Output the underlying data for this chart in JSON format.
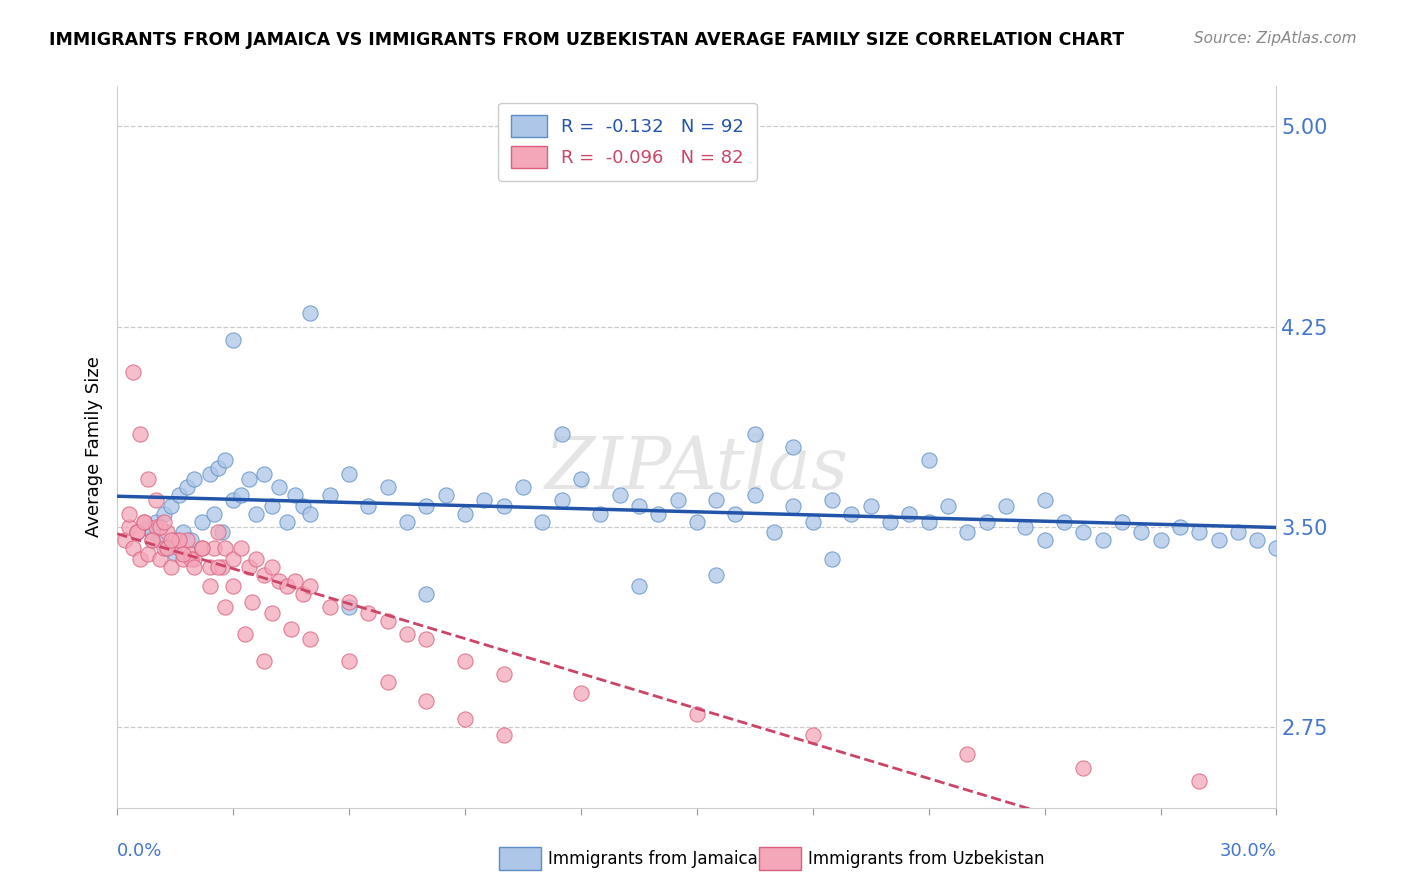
{
  "title": "IMMIGRANTS FROM JAMAICA VS IMMIGRANTS FROM UZBEKISTAN AVERAGE FAMILY SIZE CORRELATION CHART",
  "source": "Source: ZipAtlas.com",
  "ylabel": "Average Family Size",
  "xmin": 0.0,
  "xmax": 0.3,
  "ymin": 2.45,
  "ymax": 5.15,
  "yticks": [
    2.75,
    3.5,
    4.25,
    5.0
  ],
  "jamaica_R": -0.132,
  "jamaica_N": 92,
  "uzbekistan_R": -0.096,
  "uzbekistan_N": 82,
  "jamaica_color": "#aec6e8",
  "uzbekistan_color": "#f4a7b9",
  "jamaica_edge_color": "#5b8ec4",
  "uzbekistan_edge_color": "#d95f7e",
  "jamaica_line_color": "#2255aa",
  "uzbekistan_line_color": "#cc4466",
  "background_color": "#ffffff",
  "grid_color": "#cccccc",
  "tick_color": "#4477cc",
  "jamaica_scatter_x": [
    0.008,
    0.009,
    0.01,
    0.011,
    0.012,
    0.013,
    0.014,
    0.015,
    0.016,
    0.017,
    0.018,
    0.019,
    0.02,
    0.022,
    0.024,
    0.025,
    0.026,
    0.027,
    0.028,
    0.03,
    0.032,
    0.034,
    0.036,
    0.038,
    0.04,
    0.042,
    0.044,
    0.046,
    0.048,
    0.05,
    0.055,
    0.06,
    0.065,
    0.07,
    0.075,
    0.08,
    0.085,
    0.09,
    0.095,
    0.1,
    0.105,
    0.11,
    0.115,
    0.12,
    0.125,
    0.13,
    0.135,
    0.14,
    0.145,
    0.15,
    0.155,
    0.16,
    0.165,
    0.17,
    0.175,
    0.18,
    0.185,
    0.19,
    0.195,
    0.2,
    0.205,
    0.21,
    0.215,
    0.22,
    0.225,
    0.23,
    0.235,
    0.24,
    0.245,
    0.25,
    0.255,
    0.26,
    0.265,
    0.27,
    0.275,
    0.28,
    0.285,
    0.29,
    0.295,
    0.3,
    0.175,
    0.135,
    0.08,
    0.06,
    0.165,
    0.115,
    0.21,
    0.24,
    0.155,
    0.185,
    0.05,
    0.03
  ],
  "jamaica_scatter_y": [
    3.5,
    3.48,
    3.52,
    3.45,
    3.55,
    3.42,
    3.58,
    3.4,
    3.62,
    3.48,
    3.65,
    3.45,
    3.68,
    3.52,
    3.7,
    3.55,
    3.72,
    3.48,
    3.75,
    3.6,
    3.62,
    3.68,
    3.55,
    3.7,
    3.58,
    3.65,
    3.52,
    3.62,
    3.58,
    3.55,
    3.62,
    3.7,
    3.58,
    3.65,
    3.52,
    3.58,
    3.62,
    3.55,
    3.6,
    3.58,
    3.65,
    3.52,
    3.6,
    3.68,
    3.55,
    3.62,
    3.58,
    3.55,
    3.6,
    3.52,
    3.6,
    3.55,
    3.62,
    3.48,
    3.58,
    3.52,
    3.6,
    3.55,
    3.58,
    3.52,
    3.55,
    3.52,
    3.58,
    3.48,
    3.52,
    3.58,
    3.5,
    3.45,
    3.52,
    3.48,
    3.45,
    3.52,
    3.48,
    3.45,
    3.5,
    3.48,
    3.45,
    3.48,
    3.45,
    3.42,
    3.8,
    3.28,
    3.25,
    3.2,
    3.85,
    3.85,
    3.75,
    3.6,
    3.32,
    3.38,
    4.3,
    4.2
  ],
  "uzbekistan_scatter_x": [
    0.002,
    0.003,
    0.004,
    0.005,
    0.006,
    0.007,
    0.008,
    0.009,
    0.01,
    0.011,
    0.012,
    0.013,
    0.014,
    0.015,
    0.016,
    0.017,
    0.018,
    0.019,
    0.02,
    0.022,
    0.024,
    0.025,
    0.026,
    0.027,
    0.028,
    0.03,
    0.032,
    0.034,
    0.036,
    0.038,
    0.04,
    0.042,
    0.044,
    0.046,
    0.048,
    0.05,
    0.055,
    0.06,
    0.065,
    0.07,
    0.075,
    0.08,
    0.09,
    0.1,
    0.12,
    0.15,
    0.18,
    0.22,
    0.25,
    0.28,
    0.003,
    0.005,
    0.007,
    0.009,
    0.011,
    0.013,
    0.016,
    0.019,
    0.022,
    0.026,
    0.03,
    0.035,
    0.04,
    0.045,
    0.05,
    0.06,
    0.07,
    0.08,
    0.09,
    0.1,
    0.004,
    0.006,
    0.008,
    0.01,
    0.012,
    0.014,
    0.017,
    0.02,
    0.024,
    0.028,
    0.033,
    0.038
  ],
  "uzbekistan_scatter_y": [
    3.45,
    3.5,
    3.42,
    3.48,
    3.38,
    3.52,
    3.4,
    3.45,
    3.5,
    3.38,
    3.42,
    3.48,
    3.35,
    3.45,
    3.42,
    3.38,
    3.45,
    3.4,
    3.38,
    3.42,
    3.35,
    3.42,
    3.48,
    3.35,
    3.42,
    3.38,
    3.42,
    3.35,
    3.38,
    3.32,
    3.35,
    3.3,
    3.28,
    3.3,
    3.25,
    3.28,
    3.2,
    3.22,
    3.18,
    3.15,
    3.1,
    3.08,
    3.0,
    2.95,
    2.88,
    2.8,
    2.72,
    2.65,
    2.6,
    2.55,
    3.55,
    3.48,
    3.52,
    3.45,
    3.5,
    3.42,
    3.45,
    3.38,
    3.42,
    3.35,
    3.28,
    3.22,
    3.18,
    3.12,
    3.08,
    3.0,
    2.92,
    2.85,
    2.78,
    2.72,
    4.08,
    3.85,
    3.68,
    3.6,
    3.52,
    3.45,
    3.4,
    3.35,
    3.28,
    3.2,
    3.1,
    3.0
  ]
}
